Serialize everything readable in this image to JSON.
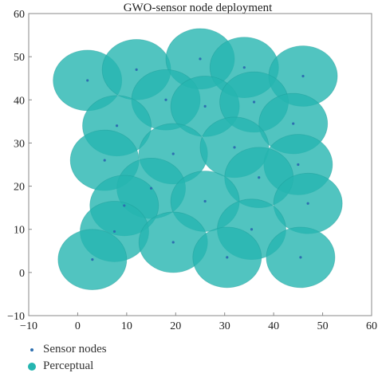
{
  "chart_data": {
    "type": "scatter",
    "title": "GWO-sensor node deployment",
    "xlim": [
      -10,
      60
    ],
    "ylim": [
      -10,
      60
    ],
    "xticks": [
      -10,
      0,
      10,
      20,
      30,
      40,
      50,
      60
    ],
    "yticks": [
      -10,
      0,
      10,
      20,
      30,
      40,
      50,
      60
    ],
    "sensing_radius": 7,
    "legend_position": "bottom-left",
    "colors": {
      "node": "#2d6fb0",
      "coverage": "#25b5b0"
    },
    "series": [
      {
        "name": "Sensor nodes",
        "points": [
          [
            2,
            44.5
          ],
          [
            12,
            47
          ],
          [
            25,
            49.5
          ],
          [
            34,
            47.5
          ],
          [
            46,
            45.5
          ],
          [
            18,
            40
          ],
          [
            26,
            38.5
          ],
          [
            36,
            39.5
          ],
          [
            8,
            34
          ],
          [
            44,
            34.5
          ],
          [
            5.5,
            26
          ],
          [
            19.5,
            27.5
          ],
          [
            32,
            29
          ],
          [
            45,
            25
          ],
          [
            37,
            22
          ],
          [
            15,
            19.5
          ],
          [
            26,
            16.5
          ],
          [
            9.5,
            15.5
          ],
          [
            47,
            16
          ],
          [
            7.5,
            9.5
          ],
          [
            35.5,
            10
          ],
          [
            19.5,
            7
          ],
          [
            30.5,
            3.5
          ],
          [
            3,
            3
          ],
          [
            45.5,
            3.5
          ]
        ]
      },
      {
        "name": "Perceptual"
      }
    ]
  }
}
